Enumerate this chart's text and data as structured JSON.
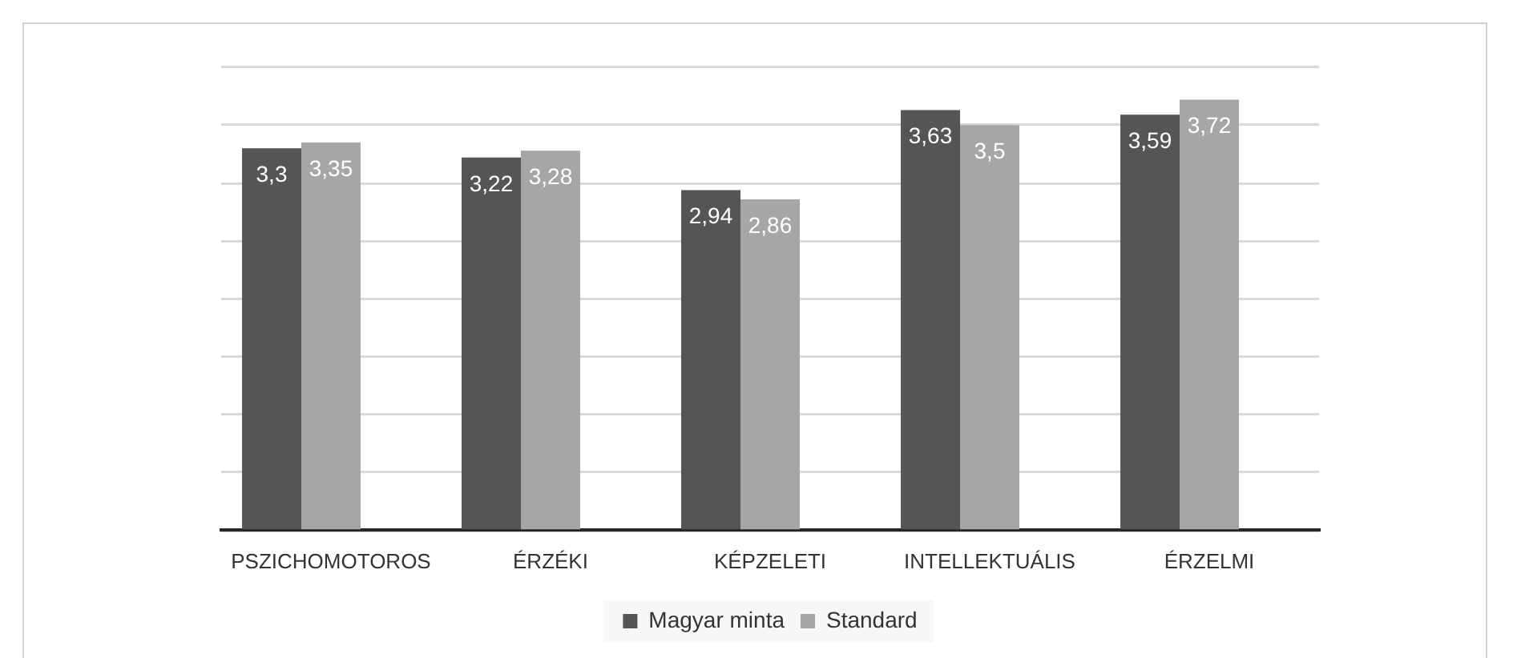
{
  "chart_data": {
    "type": "bar",
    "categories": [
      "PSZICHOMOTOROS",
      "ÉRZÉKI",
      "KÉPZELETI",
      "INTELLEKTUÁLIS",
      "ÉRZELMI"
    ],
    "series": [
      {
        "name": "Magyar minta",
        "color": "#545655",
        "values": [
          3.3,
          3.22,
          2.94,
          3.63,
          3.59
        ],
        "value_labels": [
          "3,3",
          "3,22",
          "2,94",
          "3,63",
          "3,59"
        ]
      },
      {
        "name": "Standard",
        "color": "#a6a6a6",
        "values": [
          3.35,
          3.28,
          2.86,
          3.5,
          3.72
        ],
        "value_labels": [
          "3,35",
          "3,28",
          "2,86",
          "3,5",
          "3,72"
        ]
      }
    ],
    "ylim": [
      0,
      4
    ],
    "yticks": [
      0,
      0.5,
      1,
      1.5,
      2,
      2.5,
      3,
      3.5,
      4
    ],
    "tick_labels": "x",
    "grid": "y",
    "legend": "bottom"
  }
}
